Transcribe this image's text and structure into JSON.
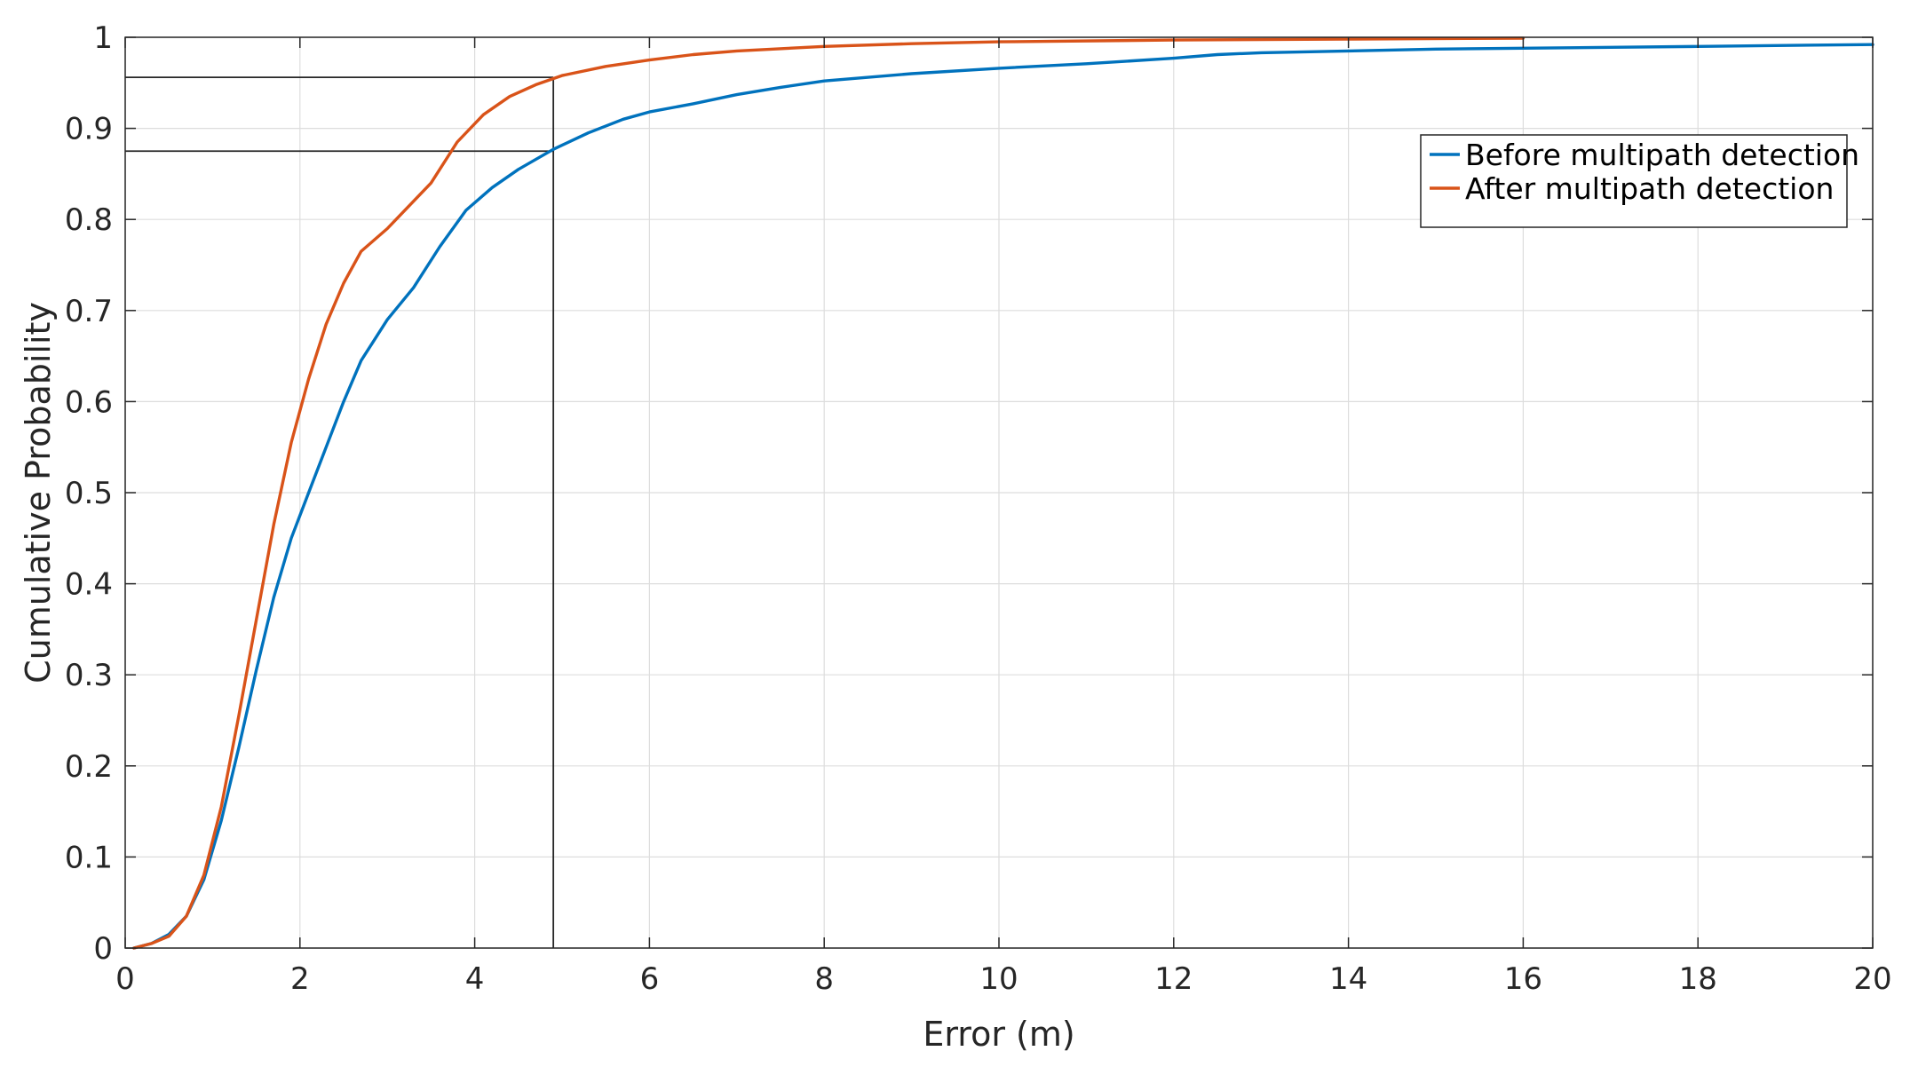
{
  "chart_data": {
    "type": "line",
    "title": "",
    "xlabel": "Error (m)",
    "ylabel": "Cumulative Probability",
    "xlim": [
      0,
      20
    ],
    "ylim": [
      0,
      1
    ],
    "xticks": [
      "0",
      "2",
      "4",
      "6",
      "8",
      "10",
      "12",
      "14",
      "16",
      "18",
      "20"
    ],
    "yticks": [
      "0",
      "0.1",
      "0.2",
      "0.3",
      "0.4",
      "0.5",
      "0.6",
      "0.7",
      "0.8",
      "0.9",
      "1"
    ],
    "grid": true,
    "legend_position": "top-right",
    "series": [
      {
        "name": "Before multipath detection",
        "color": "#0072BD",
        "x": [
          0.1,
          0.3,
          0.5,
          0.7,
          0.9,
          1.1,
          1.3,
          1.5,
          1.7,
          1.9,
          2.1,
          2.3,
          2.5,
          2.7,
          3.0,
          3.3,
          3.6,
          3.9,
          4.2,
          4.5,
          4.9,
          5.3,
          5.7,
          6.0,
          6.5,
          7.0,
          7.5,
          8.0,
          9.0,
          10.0,
          11.0,
          12.0,
          12.5,
          13.0,
          14.0,
          15.0,
          16.0,
          17.0,
          18.0,
          19.0,
          20.0
        ],
        "y": [
          0.0,
          0.005,
          0.015,
          0.035,
          0.075,
          0.14,
          0.22,
          0.305,
          0.385,
          0.45,
          0.5,
          0.55,
          0.6,
          0.645,
          0.69,
          0.725,
          0.77,
          0.81,
          0.835,
          0.855,
          0.877,
          0.895,
          0.91,
          0.918,
          0.927,
          0.937,
          0.945,
          0.952,
          0.96,
          0.966,
          0.971,
          0.977,
          0.981,
          0.983,
          0.985,
          0.987,
          0.988,
          0.989,
          0.99,
          0.991,
          0.992
        ]
      },
      {
        "name": "After multipath detection",
        "color": "#D95319",
        "x": [
          0.1,
          0.3,
          0.5,
          0.7,
          0.9,
          1.1,
          1.3,
          1.5,
          1.7,
          1.9,
          2.1,
          2.3,
          2.5,
          2.7,
          3.0,
          3.2,
          3.5,
          3.8,
          4.1,
          4.4,
          4.7,
          5.0,
          5.5,
          6.0,
          6.5,
          7.0,
          8.0,
          9.0,
          10.0,
          12.0,
          14.0,
          16.0
        ],
        "y": [
          0.0,
          0.005,
          0.013,
          0.035,
          0.08,
          0.155,
          0.255,
          0.36,
          0.465,
          0.555,
          0.625,
          0.685,
          0.73,
          0.765,
          0.79,
          0.81,
          0.84,
          0.885,
          0.915,
          0.935,
          0.948,
          0.958,
          0.968,
          0.975,
          0.981,
          0.985,
          0.99,
          0.993,
          0.995,
          0.997,
          0.998,
          0.999
        ]
      }
    ],
    "annotations": {
      "reference_x": 4.9,
      "reference_y": [
        0.956,
        0.875
      ]
    }
  }
}
